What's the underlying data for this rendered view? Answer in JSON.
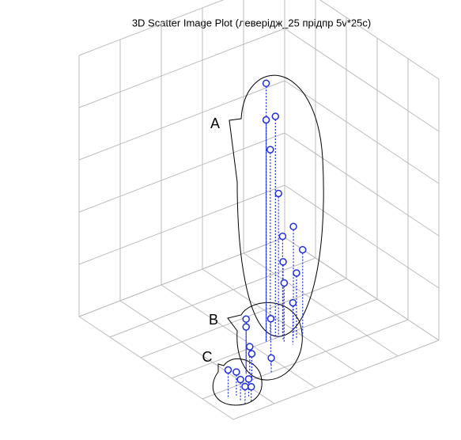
{
  "chart_data": {
    "type": "scatter3d",
    "title": "3D Scatter Image Plot (леверідж_25 прідпр 5v*25c)",
    "color": "#1f2fd8",
    "annotations": [
      "A",
      "B",
      "C"
    ],
    "x": [
      6,
      6,
      6,
      6,
      6,
      6,
      6.3,
      6.3,
      6.5,
      6.5,
      6.5,
      6.8,
      7.5,
      7.5,
      7.5,
      8,
      8,
      8,
      8.6,
      8.6,
      9,
      9.3,
      9.3,
      9
    ],
    "y": [
      4.6,
      4.6,
      5.05,
      4.8,
      5.2,
      5.4,
      5.7,
      5.2,
      6,
      5.1,
      5.7,
      5.3,
      2.5,
      2.5,
      3.7,
      2.3,
      2.4,
      3.35,
      0.8,
      1.2,
      1.1,
      1.1,
      1.4,
      1.5
    ],
    "z": [
      9.9,
      8.5,
      8.5,
      7.3,
      5.5,
      3.8,
      4.2,
      3,
      3.3,
      2.3,
      2.5,
      1.6,
      2.1,
      1.8,
      1.75,
      1.3,
      1,
      0.55,
      1.1,
      0.9,
      0.8,
      0.65,
      0.55,
      0.7
    ],
    "xlim": [
      0,
      10
    ],
    "ylim": [
      0,
      10
    ],
    "zlim": [
      0,
      10
    ],
    "xticks": [
      0,
      2,
      4,
      6,
      8,
      10
    ],
    "yticks": [
      0,
      2,
      4,
      6,
      8,
      10
    ],
    "zticks": [
      0,
      2,
      4,
      6,
      8,
      10
    ],
    "grid": true
  }
}
